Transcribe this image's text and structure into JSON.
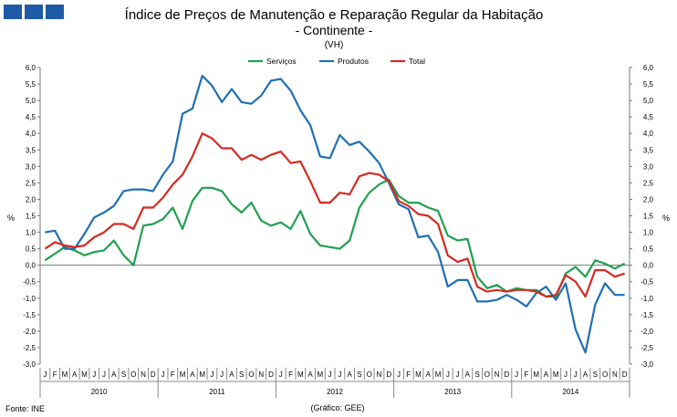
{
  "chart_data": {
    "type": "line",
    "title": "Índice de Preços de Manutenção e Reparação Regular da Habitação",
    "subtitle": "- Continente -",
    "unit_note": "(VH)",
    "ylabel": "%",
    "ylim": [
      -3.0,
      6.0
    ],
    "ytick_step": 0.5,
    "grid": false,
    "legend_position": "top-center",
    "month_letters": [
      "J",
      "F",
      "M",
      "A",
      "M",
      "J",
      "J",
      "A",
      "S",
      "O",
      "N",
      "D"
    ],
    "years": [
      "2010",
      "2011",
      "2012",
      "2013",
      "2014"
    ],
    "series": [
      {
        "name": "Serviços",
        "color": "#1fa050",
        "values": [
          0.15,
          0.35,
          0.55,
          0.45,
          0.3,
          0.4,
          0.45,
          0.75,
          0.3,
          0.0,
          1.2,
          1.25,
          1.4,
          1.75,
          1.1,
          1.95,
          2.35,
          2.35,
          2.25,
          1.85,
          1.6,
          1.9,
          1.35,
          1.2,
          1.3,
          1.1,
          1.65,
          0.95,
          0.6,
          0.55,
          0.5,
          0.75,
          1.75,
          2.2,
          2.45,
          2.6,
          2.1,
          1.9,
          1.9,
          1.75,
          1.65,
          0.9,
          0.75,
          0.8,
          -0.35,
          -0.7,
          -0.6,
          -0.8,
          -0.7,
          -0.75,
          -0.75,
          -0.95,
          -0.95,
          -0.25,
          -0.05,
          -0.35,
          0.15,
          0.05,
          -0.1,
          0.05
        ]
      },
      {
        "name": "Produtos",
        "color": "#1f6fb4",
        "values": [
          1.0,
          1.05,
          0.5,
          0.5,
          0.95,
          1.45,
          1.6,
          1.8,
          2.25,
          2.3,
          2.3,
          2.25,
          2.75,
          3.15,
          4.6,
          4.75,
          5.75,
          5.45,
          4.95,
          5.35,
          4.95,
          4.9,
          5.15,
          5.6,
          5.65,
          5.3,
          4.7,
          4.25,
          3.3,
          3.25,
          3.95,
          3.65,
          3.75,
          3.45,
          3.1,
          2.5,
          1.85,
          1.7,
          0.85,
          0.9,
          0.4,
          -0.65,
          -0.45,
          -0.45,
          -1.1,
          -1.1,
          -1.05,
          -0.9,
          -1.05,
          -1.25,
          -0.85,
          -0.65,
          -1.05,
          -0.55,
          -1.95,
          -2.65,
          -1.2,
          -0.55,
          -0.9,
          -0.9
        ]
      },
      {
        "name": "Total",
        "color": "#d62a20",
        "values": [
          0.5,
          0.7,
          0.6,
          0.55,
          0.6,
          0.85,
          1.0,
          1.25,
          1.25,
          1.1,
          1.75,
          1.75,
          2.05,
          2.45,
          2.75,
          3.3,
          4.0,
          3.85,
          3.55,
          3.55,
          3.2,
          3.35,
          3.2,
          3.35,
          3.45,
          3.1,
          3.15,
          2.55,
          1.9,
          1.9,
          2.2,
          2.15,
          2.7,
          2.8,
          2.75,
          2.55,
          1.95,
          1.8,
          1.55,
          1.5,
          1.25,
          0.3,
          0.1,
          0.2,
          -0.65,
          -0.8,
          -0.75,
          -0.8,
          -0.75,
          -0.75,
          -0.8,
          -0.95,
          -0.9,
          -0.3,
          -0.5,
          -0.95,
          -0.15,
          -0.15,
          -0.35,
          -0.25
        ]
      }
    ]
  },
  "footer": {
    "source": "Fonte: INE",
    "credit": "(Gráfico: GEE)"
  }
}
